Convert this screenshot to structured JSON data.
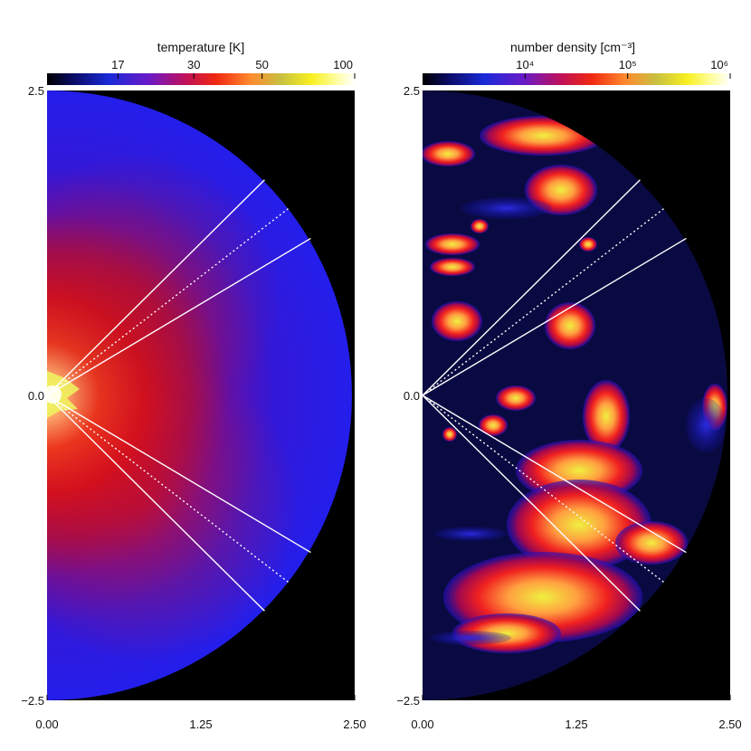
{
  "chart_data": [
    {
      "type": "heatmap",
      "title": "temperature [K]",
      "colorbar": {
        "ticks": [
          {
            "label": "17",
            "value": 17
          },
          {
            "label": "30",
            "value": 30
          },
          {
            "label": "50",
            "value": 50
          },
          {
            "label": "100",
            "value": 100
          }
        ],
        "scale": "log",
        "range": [
          10,
          100
        ],
        "colors": [
          "#000000",
          "#0000ff",
          "#ff0000",
          "#ffff00",
          "#ffffff"
        ]
      },
      "x_ticks": [
        "0.00",
        "1.25",
        "2.50"
      ],
      "y_ticks": [
        "2.5",
        "0.0",
        "−2.5"
      ],
      "xlim": [
        0,
        2.5
      ],
      "ylim": [
        -2.5,
        2.5
      ],
      "domain": "half-disk",
      "outer_radius": 2.5,
      "guide_lines_deg": [
        45,
        38,
        31,
        -31,
        -38,
        -45
      ],
      "dotted_lines_deg": [
        38,
        -38
      ]
    },
    {
      "type": "heatmap",
      "title": "number density [cm⁻³]",
      "colorbar": {
        "ticks": [
          {
            "label": "10⁴",
            "value": 10000
          },
          {
            "label": "10⁵",
            "value": 100000
          },
          {
            "label": "10⁶",
            "value": 1000000
          }
        ],
        "scale": "log",
        "range": [
          1000,
          1000000
        ],
        "colors": [
          "#000000",
          "#0000ff",
          "#ff0000",
          "#ffff00",
          "#ffffff"
        ]
      },
      "x_ticks": [
        "0.00",
        "1.25",
        "2.50"
      ],
      "y_ticks": [
        "2.5",
        "0.0",
        "−2.5"
      ],
      "xlim": [
        0,
        2.5
      ],
      "ylim": [
        -2.5,
        2.5
      ],
      "domain": "half-disk",
      "outer_radius": 2.5,
      "guide_lines_deg": [
        45,
        38,
        31,
        -31,
        -38,
        -45
      ],
      "dotted_lines_deg": [
        38,
        -38
      ]
    }
  ]
}
